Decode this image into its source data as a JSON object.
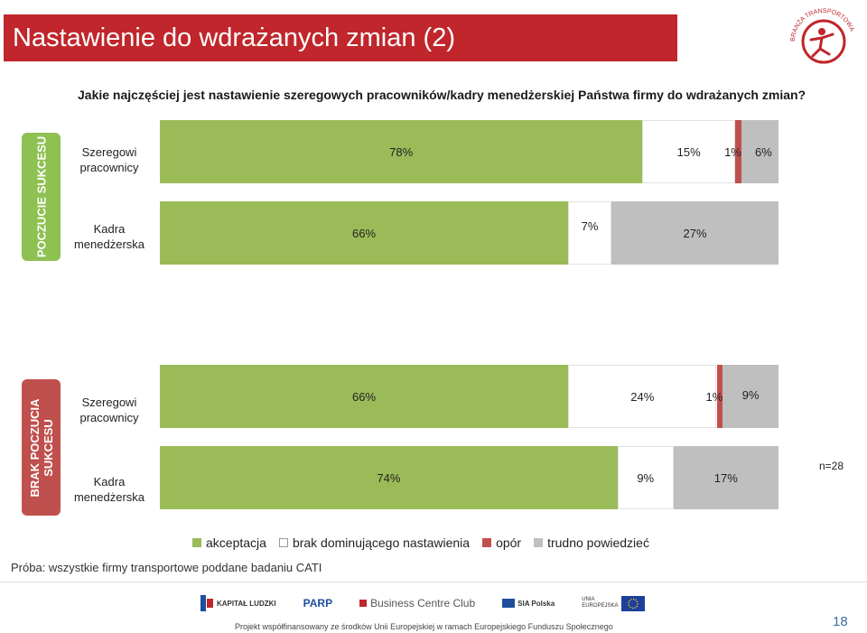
{
  "header": {
    "title": "Nastawienie do wdrażanych zmian (2)",
    "logo_text": "BRANŻA TRANSPORTOWA"
  },
  "question": "Jakie najczęściej jest nastawienie szeregowych pracowników/kadry menedżerskiej  Państwa firmy do wdrażanych zmian?",
  "groups": {
    "success": "POCZUCIE SUKCESU",
    "nosuccess_line1": "BRAK POCZUCIA",
    "nosuccess_line2": "SUKCESU"
  },
  "row_labels": {
    "s1_l1": "Szeregowi",
    "s1_l2": "pracownicy",
    "s2_l1": "Kadra",
    "s2_l2": "menedżerska",
    "n1_l1": "Szeregowi",
    "n1_l2": "pracownicy",
    "n2_l1": "Kadra",
    "n2_l2": "menedżerska"
  },
  "n_label": "n=28",
  "legend": {
    "acceptance": "akceptacja",
    "neutral": "brak dominującego nastawienia",
    "resistance": "opór",
    "dont_know": "trudno powiedzieć"
  },
  "colors": {
    "acceptance": "#9bbb59",
    "neutral": "#ffffff",
    "resistance": "#c0504d",
    "dont_know": "#bfbfbf",
    "title_bg": "#c0262b",
    "page_num": "#3a6ea5"
  },
  "chart_data": {
    "type": "bar",
    "orientation": "horizontal",
    "stacked": true,
    "percent_stacked": true,
    "series_names": [
      "akceptacja",
      "brak dominującego nastawienia",
      "opór",
      "trudno powiedzieć"
    ],
    "groups": [
      "POCZUCIE SUKCESU",
      "BRAK POCZUCIA SUKCESU"
    ],
    "rows": [
      {
        "group": "POCZUCIE SUKCESU",
        "category": "Szeregowi pracownicy",
        "values": [
          78,
          15,
          1,
          6
        ],
        "labels": [
          "78%",
          "15%",
          "1%",
          "6%"
        ]
      },
      {
        "group": "POCZUCIE SUKCESU",
        "category": "Kadra menedżerska",
        "values": [
          66,
          7,
          0,
          27
        ],
        "labels": [
          "66%",
          "7%",
          "",
          "27%"
        ]
      },
      {
        "group": "BRAK POCZUCIA SUKCESU",
        "category": "Szeregowi pracownicy",
        "values": [
          66,
          24,
          1,
          9
        ],
        "labels": [
          "66%",
          "24%",
          "1%",
          "9%"
        ]
      },
      {
        "group": "BRAK POCZUCIA SUKCESU",
        "category": "Kadra menedżerska",
        "values": [
          74,
          9,
          0,
          17
        ],
        "labels": [
          "74%",
          "9%",
          "",
          "17%"
        ]
      }
    ],
    "xlim": [
      0,
      100
    ],
    "legend_position": "bottom"
  },
  "sample_note": "Próba: wszystkie firmy transportowe poddane badaniu CATI",
  "sponsors": {
    "kl": "KAPITAŁ LUDZKI",
    "parp": "PARP",
    "bcc": "Business Centre Club",
    "sia": "SIA Polska",
    "eu": "UNIA EUROPEJSKA"
  },
  "footer_note": "Projekt współfinansowany ze środków Unii Europejskiej w ramach Europejskiego Funduszu Społecznego",
  "page_number": "18"
}
